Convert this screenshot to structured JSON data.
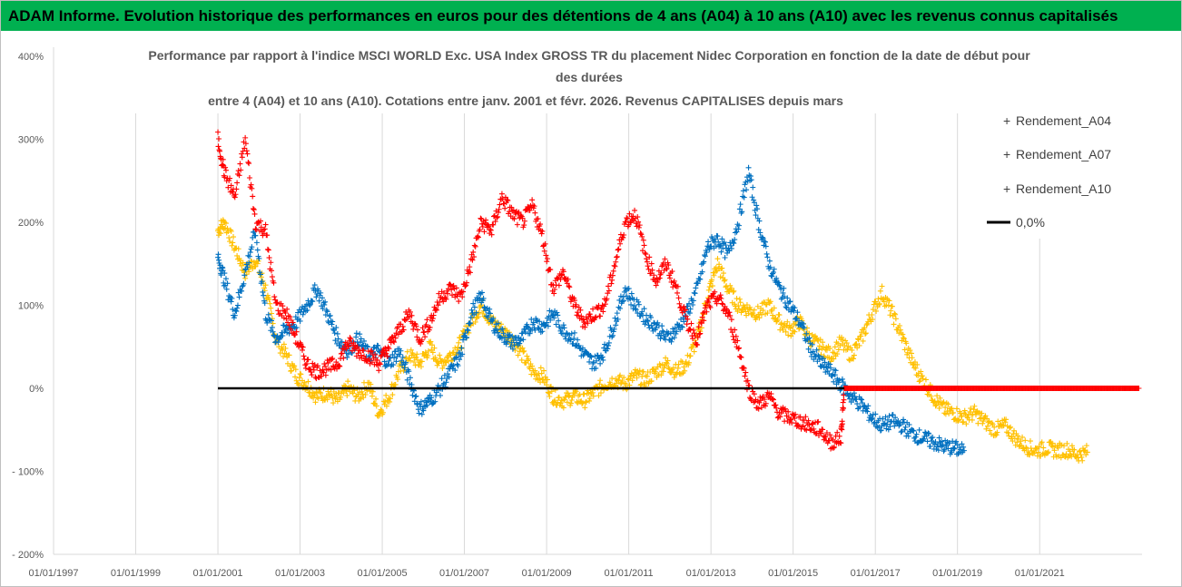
{
  "header": {
    "title": "ADAM Informe. Evolution historique des performances en euros pour des détentions de 4 ans (A04) à 10 ans (A10) avec les revenus connus capitalisés"
  },
  "colors": {
    "header_bg": "#00b050",
    "A04": "#ffc000",
    "A07": "#0070c0",
    "A10": "#ff0000",
    "zero_line": "#000000"
  },
  "chart_data": {
    "type": "scatter",
    "title": [
      "Performance par rapport à l'indice MSCI WORLD Exc. USA Index GROSS TR  du placement Nidec Corporation en fonction de la date de début pour",
      "des durées",
      "entre 4 (A04) et 10 ans (A10). Cotations entre janv. 2001 et févr. 2026. Revenus CAPITALISES depuis mars"
    ],
    "xlabel": "",
    "ylabel": "",
    "xlim": [
      "1997-01-01",
      "2023-06-30"
    ],
    "ylim": [
      -200,
      400
    ],
    "x_tick_labels": [
      "01/01/1997",
      "01/01/1999",
      "01/01/2001",
      "01/01/2003",
      "01/01/2005",
      "01/01/2007",
      "01/01/2009",
      "01/01/2011",
      "01/01/2013",
      "01/01/2015",
      "01/01/2017",
      "01/01/2019",
      "01/01/2021"
    ],
    "y_tick_labels": [
      "400%",
      "300%",
      "200%",
      "100%",
      "0%",
      "- 100%",
      "- 200%"
    ],
    "y_ticks": [
      400,
      300,
      200,
      100,
      0,
      -100,
      -200
    ],
    "grid": "vertical",
    "legend_position": "right",
    "marker": "+",
    "series": [
      {
        "name": "Rendement_A04",
        "color": "#ffc000",
        "points": [
          [
            "2001-01-01",
            190
          ],
          [
            "2001-03-01",
            200
          ],
          [
            "2001-06-01",
            170
          ],
          [
            "2001-09-01",
            140
          ],
          [
            "2001-12-01",
            155
          ],
          [
            "2002-03-01",
            120
          ],
          [
            "2002-06-01",
            60
          ],
          [
            "2002-09-01",
            40
          ],
          [
            "2002-12-01",
            15
          ],
          [
            "2003-03-01",
            5
          ],
          [
            "2003-06-01",
            -10
          ],
          [
            "2003-09-01",
            -5
          ],
          [
            "2003-12-01",
            -15
          ],
          [
            "2004-03-01",
            0
          ],
          [
            "2004-06-01",
            -10
          ],
          [
            "2004-09-01",
            5
          ],
          [
            "2004-12-01",
            -30
          ],
          [
            "2005-03-01",
            -10
          ],
          [
            "2005-06-01",
            20
          ],
          [
            "2005-09-01",
            40
          ],
          [
            "2005-12-01",
            30
          ],
          [
            "2006-03-01",
            50
          ],
          [
            "2006-06-01",
            30
          ],
          [
            "2006-09-01",
            40
          ],
          [
            "2006-12-01",
            55
          ],
          [
            "2007-03-01",
            80
          ],
          [
            "2007-06-01",
            100
          ],
          [
            "2007-09-01",
            80
          ],
          [
            "2007-12-01",
            70
          ],
          [
            "2008-03-01",
            60
          ],
          [
            "2008-06-01",
            40
          ],
          [
            "2008-09-01",
            20
          ],
          [
            "2008-12-01",
            15
          ],
          [
            "2009-03-01",
            -10
          ],
          [
            "2009-06-01",
            -15
          ],
          [
            "2009-09-01",
            -10
          ],
          [
            "2009-12-01",
            -15
          ],
          [
            "2010-03-01",
            -5
          ],
          [
            "2010-06-01",
            5
          ],
          [
            "2010-09-01",
            10
          ],
          [
            "2010-12-01",
            5
          ],
          [
            "2011-03-01",
            15
          ],
          [
            "2011-06-01",
            10
          ],
          [
            "2011-09-01",
            20
          ],
          [
            "2011-12-01",
            30
          ],
          [
            "2012-03-01",
            20
          ],
          [
            "2012-06-01",
            30
          ],
          [
            "2012-09-01",
            60
          ],
          [
            "2012-12-01",
            110
          ],
          [
            "2013-03-01",
            150
          ],
          [
            "2013-06-01",
            120
          ],
          [
            "2013-09-01",
            100
          ],
          [
            "2013-12-01",
            95
          ],
          [
            "2014-03-01",
            90
          ],
          [
            "2014-06-01",
            100
          ],
          [
            "2014-09-01",
            80
          ],
          [
            "2014-12-01",
            70
          ],
          [
            "2015-03-01",
            80
          ],
          [
            "2015-06-01",
            60
          ],
          [
            "2015-09-01",
            50
          ],
          [
            "2015-12-01",
            40
          ],
          [
            "2016-03-01",
            55
          ],
          [
            "2016-06-01",
            40
          ],
          [
            "2016-09-01",
            60
          ],
          [
            "2016-12-01",
            90
          ],
          [
            "2017-03-01",
            115
          ],
          [
            "2017-06-01",
            90
          ],
          [
            "2017-09-01",
            60
          ],
          [
            "2017-12-01",
            30
          ],
          [
            "2018-03-01",
            10
          ],
          [
            "2018-06-01",
            -10
          ],
          [
            "2018-09-01",
            -25
          ],
          [
            "2018-12-01",
            -30
          ],
          [
            "2019-03-01",
            -35
          ],
          [
            "2019-06-01",
            -30
          ],
          [
            "2019-09-01",
            -40
          ],
          [
            "2019-12-01",
            -50
          ],
          [
            "2020-03-01",
            -45
          ],
          [
            "2020-06-01",
            -60
          ],
          [
            "2020-09-01",
            -70
          ],
          [
            "2020-12-01",
            -75
          ],
          [
            "2021-03-01",
            -72
          ],
          [
            "2021-06-01",
            -75
          ],
          [
            "2021-09-01",
            -74
          ],
          [
            "2021-12-01",
            -80
          ],
          [
            "2022-03-01",
            -77
          ]
        ]
      },
      {
        "name": "Rendement_A07",
        "color": "#0070c0",
        "points": [
          [
            "2001-01-01",
            160
          ],
          [
            "2001-03-01",
            130
          ],
          [
            "2001-06-01",
            90
          ],
          [
            "2001-09-01",
            140
          ],
          [
            "2001-12-01",
            190
          ],
          [
            "2002-03-01",
            90
          ],
          [
            "2002-06-01",
            60
          ],
          [
            "2002-09-01",
            70
          ],
          [
            "2002-12-01",
            80
          ],
          [
            "2003-03-01",
            100
          ],
          [
            "2003-06-01",
            120
          ],
          [
            "2003-09-01",
            90
          ],
          [
            "2003-12-01",
            60
          ],
          [
            "2004-03-01",
            45
          ],
          [
            "2004-06-01",
            60
          ],
          [
            "2004-09-01",
            40
          ],
          [
            "2004-12-01",
            45
          ],
          [
            "2005-03-01",
            30
          ],
          [
            "2005-06-01",
            45
          ],
          [
            "2005-09-01",
            10
          ],
          [
            "2005-12-01",
            -25
          ],
          [
            "2006-03-01",
            -15
          ],
          [
            "2006-06-01",
            0
          ],
          [
            "2006-09-01",
            20
          ],
          [
            "2006-12-01",
            40
          ],
          [
            "2007-03-01",
            90
          ],
          [
            "2007-06-01",
            110
          ],
          [
            "2007-09-01",
            80
          ],
          [
            "2007-12-01",
            65
          ],
          [
            "2008-03-01",
            55
          ],
          [
            "2008-06-01",
            60
          ],
          [
            "2008-09-01",
            80
          ],
          [
            "2008-12-01",
            75
          ],
          [
            "2009-03-01",
            90
          ],
          [
            "2009-06-01",
            70
          ],
          [
            "2009-09-01",
            60
          ],
          [
            "2009-12-01",
            40
          ],
          [
            "2010-03-01",
            30
          ],
          [
            "2010-06-01",
            45
          ],
          [
            "2010-09-01",
            80
          ],
          [
            "2010-12-01",
            120
          ],
          [
            "2011-03-01",
            100
          ],
          [
            "2011-06-01",
            85
          ],
          [
            "2011-09-01",
            75
          ],
          [
            "2011-12-01",
            60
          ],
          [
            "2012-03-01",
            70
          ],
          [
            "2012-06-01",
            90
          ],
          [
            "2012-09-01",
            120
          ],
          [
            "2012-12-01",
            170
          ],
          [
            "2013-03-01",
            180
          ],
          [
            "2013-06-01",
            160
          ],
          [
            "2013-09-01",
            200
          ],
          [
            "2013-12-01",
            260
          ],
          [
            "2014-03-01",
            200
          ],
          [
            "2014-06-01",
            150
          ],
          [
            "2014-09-01",
            120
          ],
          [
            "2014-12-01",
            100
          ],
          [
            "2015-03-01",
            80
          ],
          [
            "2015-06-01",
            50
          ],
          [
            "2015-09-01",
            30
          ],
          [
            "2015-12-01",
            20
          ],
          [
            "2016-03-01",
            5
          ],
          [
            "2016-06-01",
            -10
          ],
          [
            "2016-09-01",
            -20
          ],
          [
            "2016-12-01",
            -35
          ],
          [
            "2017-03-01",
            -45
          ],
          [
            "2017-06-01",
            -40
          ],
          [
            "2017-09-01",
            -45
          ],
          [
            "2017-12-01",
            -55
          ],
          [
            "2018-03-01",
            -60
          ],
          [
            "2018-06-01",
            -65
          ],
          [
            "2018-09-01",
            -70
          ],
          [
            "2018-12-01",
            -72
          ],
          [
            "2019-03-01",
            -75
          ]
        ]
      },
      {
        "name": "Rendement_A10",
        "color": "#ff0000",
        "points": [
          [
            "2001-01-01",
            300
          ],
          [
            "2001-03-01",
            260
          ],
          [
            "2001-06-01",
            230
          ],
          [
            "2001-09-01",
            300
          ],
          [
            "2001-12-01",
            200
          ],
          [
            "2002-03-01",
            190
          ],
          [
            "2002-06-01",
            100
          ],
          [
            "2002-09-01",
            90
          ],
          [
            "2002-12-01",
            60
          ],
          [
            "2003-03-01",
            30
          ],
          [
            "2003-06-01",
            20
          ],
          [
            "2003-09-01",
            25
          ],
          [
            "2003-12-01",
            30
          ],
          [
            "2004-03-01",
            55
          ],
          [
            "2004-06-01",
            45
          ],
          [
            "2004-09-01",
            40
          ],
          [
            "2004-12-01",
            30
          ],
          [
            "2005-03-01",
            50
          ],
          [
            "2005-06-01",
            70
          ],
          [
            "2005-09-01",
            90
          ],
          [
            "2005-12-01",
            60
          ],
          [
            "2006-03-01",
            80
          ],
          [
            "2006-06-01",
            110
          ],
          [
            "2006-09-01",
            120
          ],
          [
            "2006-12-01",
            110
          ],
          [
            "2007-03-01",
            150
          ],
          [
            "2007-06-01",
            200
          ],
          [
            "2007-09-01",
            190
          ],
          [
            "2007-12-01",
            230
          ],
          [
            "2008-03-01",
            210
          ],
          [
            "2008-06-01",
            200
          ],
          [
            "2008-09-01",
            220
          ],
          [
            "2008-12-01",
            180
          ],
          [
            "2009-03-01",
            120
          ],
          [
            "2009-06-01",
            140
          ],
          [
            "2009-09-01",
            100
          ],
          [
            "2009-12-01",
            80
          ],
          [
            "2010-03-01",
            90
          ],
          [
            "2010-06-01",
            100
          ],
          [
            "2010-09-01",
            150
          ],
          [
            "2010-12-01",
            200
          ],
          [
            "2011-03-01",
            210
          ],
          [
            "2011-06-01",
            160
          ],
          [
            "2011-09-01",
            130
          ],
          [
            "2011-12-01",
            150
          ],
          [
            "2012-03-01",
            120
          ],
          [
            "2012-06-01",
            80
          ],
          [
            "2012-09-01",
            60
          ],
          [
            "2012-12-01",
            100
          ],
          [
            "2013-03-01",
            110
          ],
          [
            "2013-06-01",
            90
          ],
          [
            "2013-09-01",
            50
          ],
          [
            "2013-12-01",
            0
          ],
          [
            "2014-03-01",
            -20
          ],
          [
            "2014-06-01",
            -10
          ],
          [
            "2014-09-01",
            -30
          ],
          [
            "2014-12-01",
            -35
          ],
          [
            "2015-03-01",
            -40
          ],
          [
            "2015-06-01",
            -45
          ],
          [
            "2015-09-01",
            -50
          ],
          [
            "2015-12-01",
            -65
          ],
          [
            "2016-03-01",
            -60
          ],
          [
            "2016-04-01",
            0
          ],
          [
            "2017-01-01",
            0
          ],
          [
            "2018-01-01",
            0
          ],
          [
            "2019-01-01",
            0
          ],
          [
            "2020-01-01",
            0
          ],
          [
            "2021-01-01",
            0
          ],
          [
            "2022-01-01",
            0
          ],
          [
            "2023-01-01",
            0
          ],
          [
            "2023-06-01",
            0
          ]
        ]
      },
      {
        "name": "0,0%",
        "color": "#000000",
        "type": "line",
        "points": [
          [
            "2001-01-01",
            0
          ],
          [
            "2016-04-01",
            0
          ]
        ]
      }
    ]
  }
}
